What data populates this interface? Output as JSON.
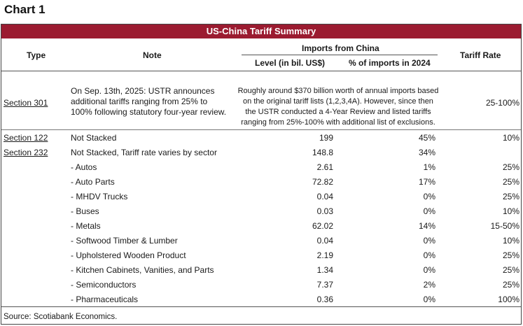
{
  "chart_label": "Chart 1",
  "table_title": "US-China Tariff Summary",
  "headers": {
    "type": "Type",
    "note": "Note",
    "imports_group": "Imports from China",
    "level": "Level (in bil. US$)",
    "pct": "% of imports in 2024",
    "tariff_rate": "Tariff Rate"
  },
  "section301": {
    "type": "Section 301",
    "note": "On Sep. 13th, 2025: USTR announces additional tariffs ranging from 25% to 100% following statutory four-year review.",
    "imports_note": "Roughly around $370 billion worth of annual imports based on the original tariff lists (1,2,3,4A). However, since then the USTR conducted a 4-Year Review and listed tariffs ranging from 25%-100% with additional list of exclusions.",
    "rate": "25-100%"
  },
  "rows": [
    {
      "type": "Section 122",
      "note": "Not Stacked",
      "level": "199",
      "pct": "45%",
      "rate": "10%"
    },
    {
      "type": "Section 232",
      "note": "Not Stacked, Tariff rate varies by sector",
      "level": "148.8",
      "pct": "34%",
      "rate": ""
    },
    {
      "type": "",
      "note": "- Autos",
      "level": "2.61",
      "pct": "1%",
      "rate": "25%"
    },
    {
      "type": "",
      "note": "- Auto Parts",
      "level": "72.82",
      "pct": "17%",
      "rate": "25%"
    },
    {
      "type": "",
      "note": "- MHDV Trucks",
      "level": "0.04",
      "pct": "0%",
      "rate": "25%"
    },
    {
      "type": "",
      "note": "- Buses",
      "level": "0.03",
      "pct": "0%",
      "rate": "10%"
    },
    {
      "type": "",
      "note": "- Metals",
      "level": "62.02",
      "pct": "14%",
      "rate": "15-50%"
    },
    {
      "type": "",
      "note": "- Softwood Timber & Lumber",
      "level": "0.04",
      "pct": "0%",
      "rate": "10%"
    },
    {
      "type": "",
      "note": "- Upholstered Wooden Product",
      "level": "2.19",
      "pct": "0%",
      "rate": "25%"
    },
    {
      "type": "",
      "note": "- Kitchen Cabinets, Vanities, and Parts",
      "level": "1.34",
      "pct": "0%",
      "rate": "25%"
    },
    {
      "type": "",
      "note": "- Semiconductors",
      "level": "7.37",
      "pct": "2%",
      "rate": "25%"
    },
    {
      "type": "",
      "note": "- Pharmaceuticals",
      "level": "0.36",
      "pct": "0%",
      "rate": "100%"
    }
  ],
  "source": "Source: Scotiabank Economics."
}
